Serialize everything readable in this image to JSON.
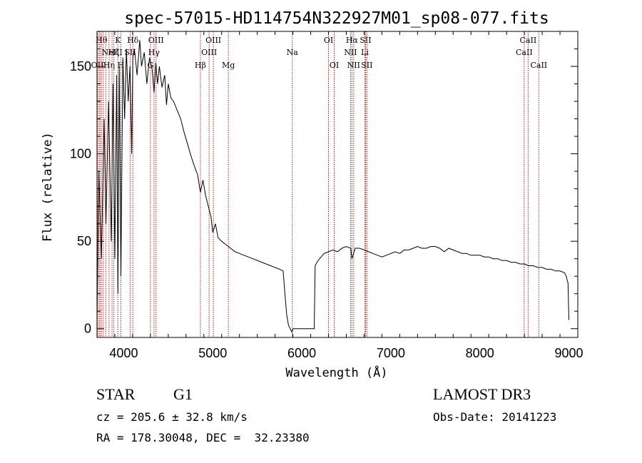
{
  "chart_data": {
    "type": "line",
    "title": "spec-57015-HD114754N322927M01_sp08-077.fits",
    "xlabel": "Wavelength (Å)",
    "ylabel": "Flux (relative)",
    "xlim": [
      3700,
      9100
    ],
    "ylim": [
      -5,
      170
    ],
    "xticks": [
      4000,
      5000,
      6000,
      7000,
      8000,
      9000
    ],
    "yticks": [
      0,
      50,
      100,
      150
    ],
    "grid": false,
    "series": [
      {
        "x": [
          3700,
          3720,
          3750,
          3780,
          3800,
          3830,
          3860,
          3880,
          3900,
          3920,
          3935,
          3950,
          3968,
          3990,
          4010,
          4030,
          4050,
          4070,
          4090,
          4102,
          4120,
          4150,
          4180,
          4200,
          4230,
          4260,
          4290,
          4320,
          4340,
          4360,
          4380,
          4400,
          4430,
          4460,
          4480,
          4500,
          4530,
          4560,
          4600,
          4640,
          4680,
          4720,
          4760,
          4800,
          4830,
          4861,
          4890,
          4920,
          4950,
          4980,
          5000,
          5030,
          5060,
          5100,
          5150,
          5200,
          5250,
          5300,
          5350,
          5400,
          5450,
          5500,
          5550,
          5600,
          5650,
          5700,
          5750,
          5790,
          5810,
          5830,
          5850,
          5870,
          5890,
          5900,
          5950,
          6000,
          6050,
          6100,
          6140,
          6150,
          6170,
          6200,
          6250,
          6300,
          6350,
          6400,
          6450,
          6500,
          6550,
          6563,
          6600,
          6650,
          6700,
          6750,
          6800,
          6850,
          6900,
          6950,
          7000,
          7050,
          7100,
          7150,
          7200,
          7250,
          7300,
          7350,
          7400,
          7450,
          7500,
          7550,
          7600,
          7650,
          7700,
          7750,
          7800,
          7850,
          7900,
          7950,
          8000,
          8050,
          8100,
          8150,
          8200,
          8250,
          8300,
          8350,
          8400,
          8450,
          8500,
          8550,
          8600,
          8650,
          8700,
          8750,
          8800,
          8850,
          8900,
          8950,
          8970,
          8980,
          8990,
          9000
        ],
        "y": [
          5,
          90,
          40,
          120,
          60,
          130,
          50,
          140,
          40,
          145,
          20,
          150,
          30,
          155,
          120,
          160,
          130,
          150,
          100,
          155,
          160,
          145,
          165,
          150,
          158,
          140,
          155,
          148,
          135,
          152,
          140,
          150,
          138,
          145,
          128,
          140,
          132,
          130,
          125,
          120,
          112,
          105,
          98,
          92,
          88,
          78,
          85,
          76,
          70,
          64,
          55,
          60,
          52,
          50,
          48,
          46,
          44,
          43,
          42,
          41,
          40,
          39,
          38,
          37,
          36,
          35,
          34,
          33,
          20,
          8,
          2,
          0,
          -2,
          0,
          0,
          0,
          0,
          0,
          0,
          36,
          38,
          40,
          43,
          44,
          45,
          44,
          46,
          47,
          46,
          40,
          46,
          46,
          45,
          44,
          43,
          42,
          41,
          42,
          43,
          44,
          43,
          45,
          45,
          46,
          47,
          46,
          46,
          47,
          47,
          46,
          44,
          46,
          45,
          44,
          43,
          43,
          42,
          42,
          42,
          41,
          41,
          40,
          40,
          39,
          39,
          38,
          38,
          37,
          37,
          36,
          36,
          35,
          35,
          34,
          34,
          33,
          33,
          32,
          30,
          28,
          26,
          5
        ]
      }
    ],
    "lines": [
      {
        "x": 3704,
        "label": "OII",
        "row": 3
      },
      {
        "x": 3722,
        "label": "",
        "row": 0
      },
      {
        "x": 3734,
        "label": "",
        "row": 0
      },
      {
        "x": 3750,
        "label": "Hθ",
        "row": 1
      },
      {
        "x": 3770,
        "label": "",
        "row": 0
      },
      {
        "x": 3798,
        "label": "",
        "row": 0
      },
      {
        "x": 3835,
        "label": "Hη",
        "row": 3
      },
      {
        "x": 3869,
        "label": "NeIII",
        "row": 2
      },
      {
        "x": 3889,
        "label": "Hζ",
        "row": 2
      },
      {
        "x": 3934,
        "label": "K",
        "row": 1
      },
      {
        "x": 3968,
        "label": "H",
        "row": 3
      },
      {
        "x": 4072,
        "label": "SII",
        "row": 2
      },
      {
        "x": 4102,
        "label": "Hδ",
        "row": 1
      },
      {
        "x": 4300,
        "label": "G",
        "row": 3
      },
      {
        "x": 4340,
        "label": "Hγ",
        "row": 2
      },
      {
        "x": 4363,
        "label": "OIII",
        "row": 1
      },
      {
        "x": 4861,
        "label": "Hβ",
        "row": 3
      },
      {
        "x": 4959,
        "label": "OIII",
        "row": 2
      },
      {
        "x": 5007,
        "label": "OIII",
        "row": 1
      },
      {
        "x": 5175,
        "label": "Mg",
        "row": 3
      },
      {
        "x": 5893,
        "label": "Na",
        "row": 2
      },
      {
        "x": 6300,
        "label": "OI",
        "row": 1
      },
      {
        "x": 6364,
        "label": "OI",
        "row": 3
      },
      {
        "x": 6548,
        "label": "NII",
        "row": 2
      },
      {
        "x": 6563,
        "label": "Hα",
        "row": 1
      },
      {
        "x": 6583,
        "label": "NII",
        "row": 3
      },
      {
        "x": 6708,
        "label": "Li",
        "row": 2
      },
      {
        "x": 6716,
        "label": "SII",
        "row": 1
      },
      {
        "x": 6731,
        "label": "SII",
        "row": 3
      },
      {
        "x": 8498,
        "label": "CaII",
        "row": 2
      },
      {
        "x": 8542,
        "label": "CaII",
        "row": 1
      },
      {
        "x": 8662,
        "label": "CaII",
        "row": 3
      }
    ]
  },
  "info": {
    "class": "STAR",
    "subclass": "G1",
    "survey": "LAMOST DR3",
    "cz": "cz = 205.6 ± 32.8 km/s",
    "obsdate": "Obs-Date: 20141223",
    "radec": "RA = 178.30048, DEC =  32.23380"
  }
}
